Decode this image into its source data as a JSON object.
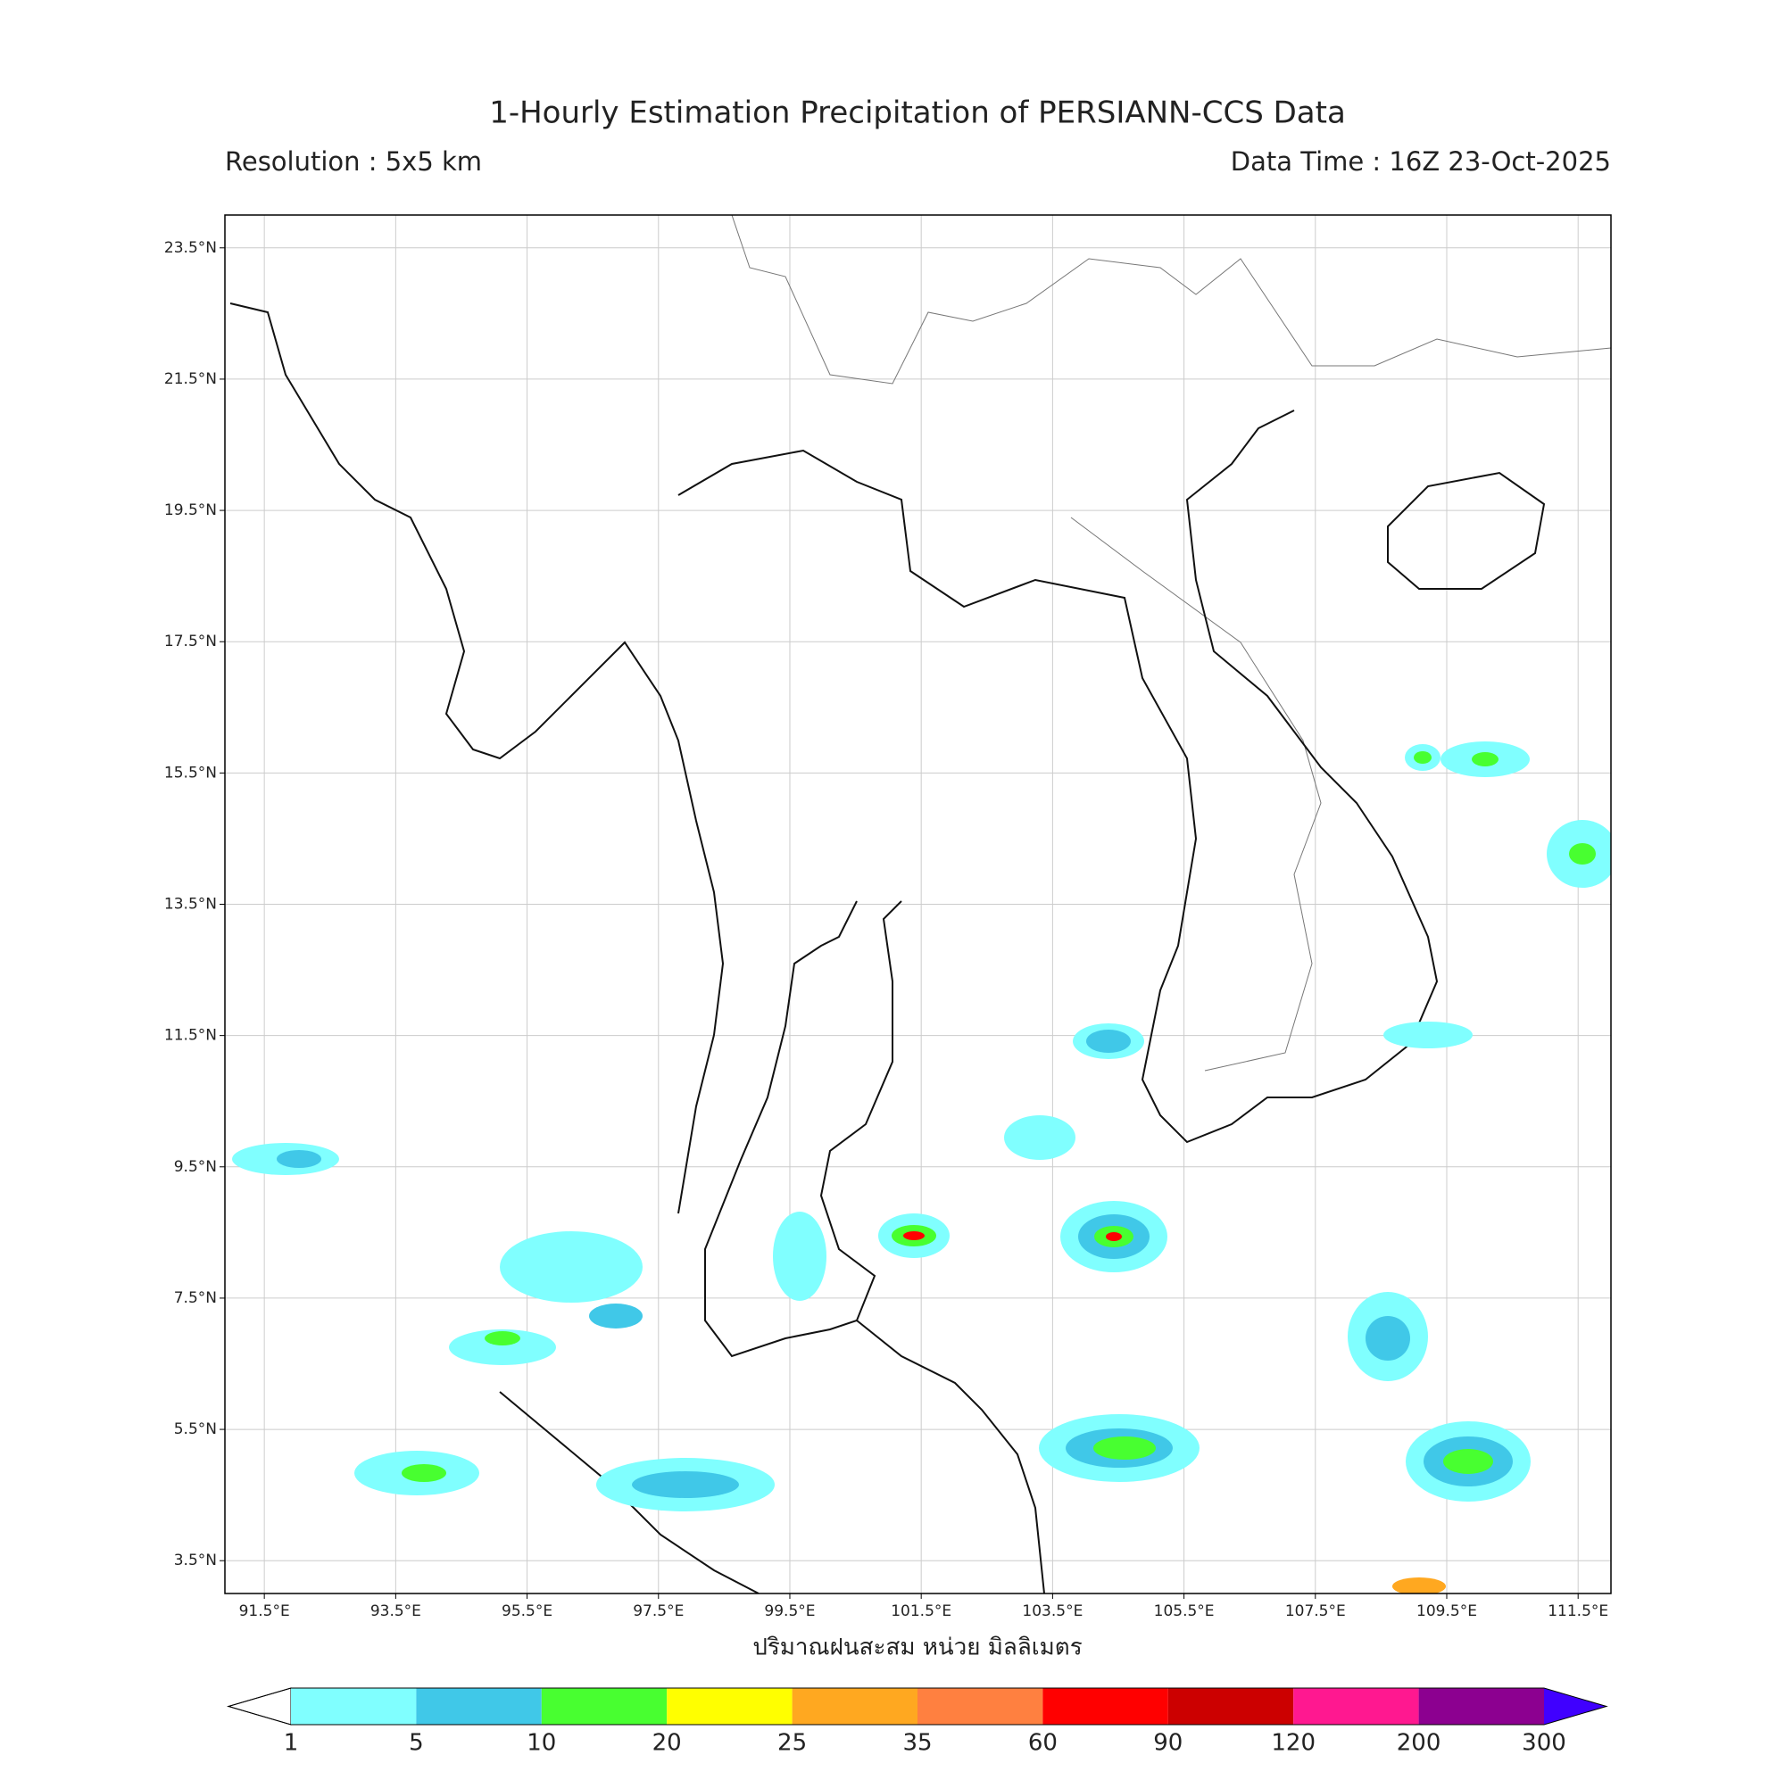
{
  "header": {
    "title": "1-Hourly Estimation Precipitation of PERSIANN-CCS Data",
    "resolution": "Resolution : 5x5 km",
    "data_time": "Data Time : 16Z 23-Oct-2025"
  },
  "map": {
    "xlim": [
      90.9,
      112.0
    ],
    "ylim": [
      3.0,
      24.0
    ],
    "xticks": [
      {
        "value": 91.5,
        "label": "91.5°E"
      },
      {
        "value": 93.5,
        "label": "93.5°E"
      },
      {
        "value": 95.5,
        "label": "95.5°E"
      },
      {
        "value": 97.5,
        "label": "97.5°E"
      },
      {
        "value": 99.5,
        "label": "99.5°E"
      },
      {
        "value": 101.5,
        "label": "101.5°E"
      },
      {
        "value": 103.5,
        "label": "103.5°E"
      },
      {
        "value": 105.5,
        "label": "105.5°E"
      },
      {
        "value": 107.5,
        "label": "107.5°E"
      },
      {
        "value": 109.5,
        "label": "109.5°E"
      },
      {
        "value": 111.5,
        "label": "111.5°E"
      }
    ],
    "yticks": [
      {
        "value": 23.5,
        "label": "23.5°N"
      },
      {
        "value": 21.5,
        "label": "21.5°N"
      },
      {
        "value": 19.5,
        "label": "19.5°N"
      },
      {
        "value": 17.5,
        "label": "17.5°N"
      },
      {
        "value": 15.5,
        "label": "15.5°N"
      },
      {
        "value": 13.5,
        "label": "13.5°N"
      },
      {
        "value": 11.5,
        "label": "11.5°N"
      },
      {
        "value": 9.5,
        "label": "9.5°N"
      },
      {
        "value": 7.5,
        "label": "7.5°N"
      },
      {
        "value": 5.5,
        "label": "5.5°N"
      },
      {
        "value": 3.5,
        "label": "3.5°N"
      }
    ],
    "xlabel": "ปริมาณฝนสะสม หน่วย มิลลิเมตร"
  },
  "colorbar": {
    "levels": [
      1,
      5,
      10,
      20,
      25,
      35,
      60,
      90,
      120,
      200,
      300
    ],
    "colors": [
      "#80ffff",
      "#40c8e8",
      "#48ff30",
      "#ffff00",
      "#ffa820",
      "#ff8040",
      "#ff0000",
      "#cc0000",
      "#ff1890",
      "#8c0090"
    ],
    "over_color": "#4000ff"
  }
}
